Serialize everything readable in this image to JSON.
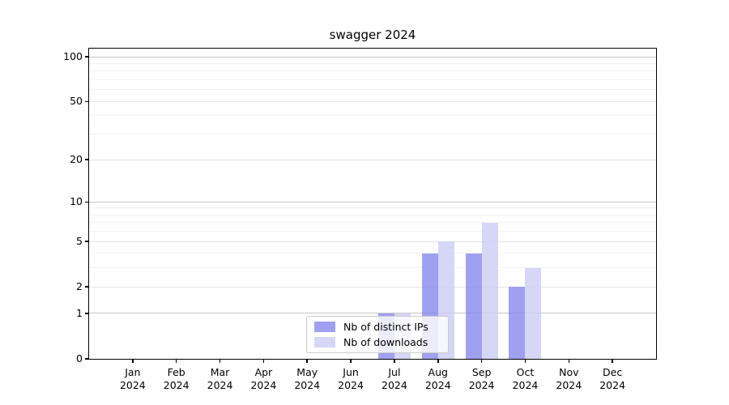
{
  "chart_data": {
    "type": "bar",
    "title": "swagger 2024",
    "xlabel": "",
    "ylabel": "",
    "categories": [
      "Jan 2024",
      "Feb 2024",
      "Mar 2024",
      "Apr 2024",
      "May 2024",
      "Jun 2024",
      "Jul 2024",
      "Aug 2024",
      "Sep 2024",
      "Oct 2024",
      "Nov 2024",
      "Dec 2024"
    ],
    "series": [
      {
        "name": "Nb of distinct IPs",
        "color": "#8888ee",
        "values": [
          0,
          0,
          0,
          0,
          0,
          0,
          1,
          4,
          4,
          2,
          0,
          0
        ]
      },
      {
        "name": "Nb of downloads",
        "color": "#ccccf5",
        "values": [
          0,
          0,
          0,
          0,
          0,
          0,
          1,
          5,
          7,
          3,
          0,
          0
        ]
      }
    ],
    "bar_alpha": 0.8,
    "yscale": "log1p",
    "ylim": [
      0,
      115
    ],
    "yticks_labeled": [
      0,
      1,
      2,
      5,
      10,
      20,
      50,
      100
    ],
    "yticks_major": [
      1,
      10,
      100
    ],
    "yticks_minor": [
      3,
      4,
      6,
      7,
      8,
      9,
      30,
      40,
      60,
      70,
      80,
      90
    ],
    "grid": true,
    "legend_position": "lower center inside axes"
  },
  "colors": {
    "grid_major": "#c6c6c6",
    "grid_labeled": "#e6e6e6",
    "grid_minor": "#f2f2f2",
    "axis": "#000000",
    "background": "#ffffff"
  }
}
